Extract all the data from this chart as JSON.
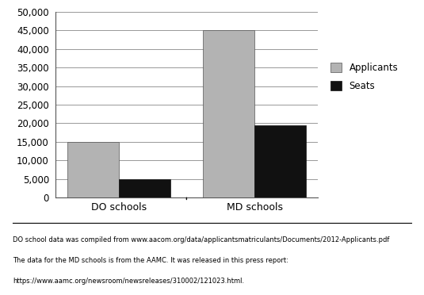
{
  "categories": [
    "DO schools",
    "MD schools"
  ],
  "applicants": [
    15000,
    45000
  ],
  "seats": [
    5000,
    19500
  ],
  "applicants_color": "#b3b3b3",
  "seats_color": "#111111",
  "ylim": [
    0,
    50000
  ],
  "yticks": [
    0,
    5000,
    10000,
    15000,
    20000,
    25000,
    30000,
    35000,
    40000,
    45000,
    50000
  ],
  "legend_labels": [
    "Applicants",
    "Seats"
  ],
  "bar_width": 0.38,
  "footnote_line1": "DO school data was compiled from www.aacom.org/data/applicantsmatriculants/Documents/2012-Applicants.pdf",
  "footnote_line2": "The data for the MD schools is from the AAMC. It was released in this press report:",
  "footnote_line3": "https://www.aamc.org/newsroom/newsreleases/310002/121023.html.",
  "background_color": "#ffffff",
  "chart_bg": "#ffffff"
}
